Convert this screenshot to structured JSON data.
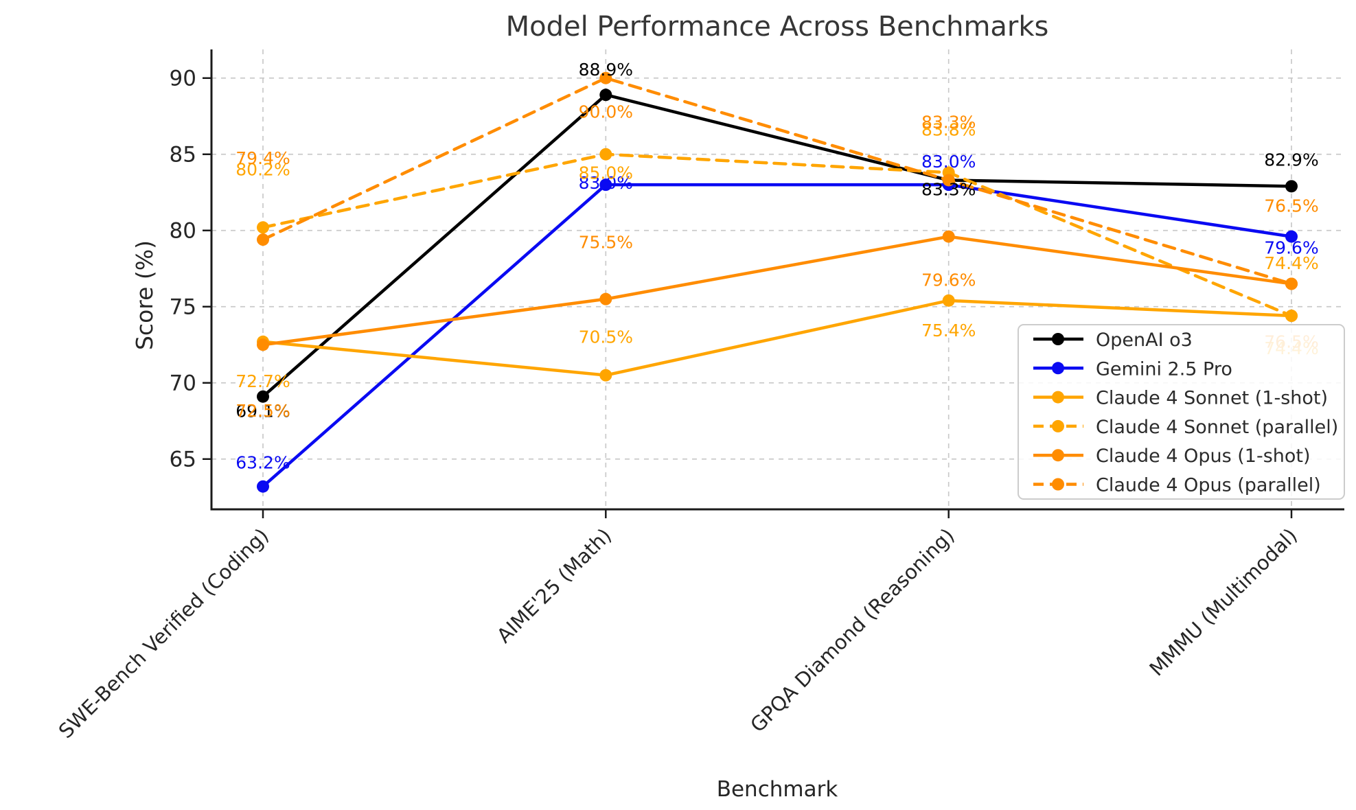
{
  "title": "Model Performance Across Benchmarks",
  "chart_data": {
    "type": "line",
    "title": "Model Performance Across Benchmarks",
    "xlabel": "Benchmark",
    "ylabel": "Score (%)",
    "categories": [
      "SWE-Bench Verified (Coding)",
      "AIME'25 (Math)",
      "GPQA Diamond (Reasoning)",
      "MMMU (Multimodal)"
    ],
    "yticks": [
      65,
      70,
      75,
      80,
      85,
      90
    ],
    "ylim": [
      61.7,
      91.8
    ],
    "grid": true,
    "grid_style": "dashed",
    "legend_position": "center right",
    "data_label_format": "one decimal percent",
    "series": [
      {
        "name": "OpenAI o3",
        "color": "#000000",
        "style": "solid",
        "values": [
          69.1,
          88.9,
          83.3,
          82.9
        ],
        "labels": [
          "69.1%",
          "88.9%",
          "83.3%",
          "82.9%"
        ]
      },
      {
        "name": "Gemini 2.5 Pro",
        "color": "#0a0af2",
        "style": "solid",
        "values": [
          63.2,
          83.0,
          83.0,
          79.6
        ],
        "labels": [
          "63.2%",
          "83.0%",
          "83.0%",
          "79.6%"
        ]
      },
      {
        "name": "Claude 4 Sonnet (1-shot)",
        "color": "#FFA500",
        "style": "solid",
        "values": [
          72.7,
          70.5,
          75.4,
          74.4
        ],
        "labels": [
          "72.7%",
          "70.5%",
          "75.4%",
          "74.4%"
        ]
      },
      {
        "name": "Claude 4 Sonnet (parallel)",
        "color": "#FFA500",
        "style": "dashed",
        "values": [
          80.2,
          85.0,
          83.8,
          74.4
        ],
        "labels": [
          "80.2%",
          "85.0%",
          "83.8%",
          "74.4%"
        ]
      },
      {
        "name": "Claude 4 Opus (1-shot)",
        "color": "#FF8C00",
        "style": "solid",
        "values": [
          72.5,
          75.5,
          79.6,
          76.5
        ],
        "labels": [
          "72.5%",
          "75.5%",
          "79.6%",
          "76.5%"
        ]
      },
      {
        "name": "Claude 4 Opus (parallel)",
        "color": "#FF8C00",
        "style": "dashed",
        "values": [
          79.4,
          90.0,
          83.3,
          76.5
        ],
        "labels": [
          "79.4%",
          "90.0%",
          "83.3%",
          "76.5%"
        ]
      }
    ],
    "colors": {
      "axis_text": "#262626",
      "title_text": "#363636",
      "grid": "#c9c9c9",
      "spine": "#1a1a1a",
      "legend_border": "#cccccc",
      "legend_bg": "rgba(255,255,255,0.85)"
    }
  }
}
